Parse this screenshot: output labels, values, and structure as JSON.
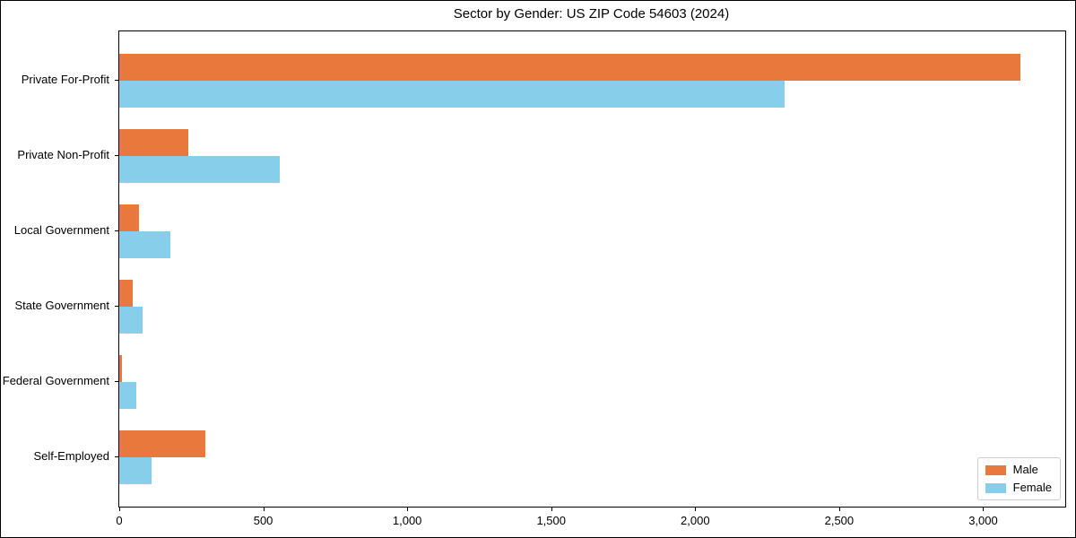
{
  "chart_data": {
    "type": "bar",
    "orientation": "horizontal",
    "title": "Sector by Gender: US ZIP Code 54603 (2024)",
    "categories": [
      "Private For-Profit",
      "Private Non-Profit",
      "Local Government",
      "State Government",
      "Federal Government",
      "Self-Employed"
    ],
    "series": [
      {
        "name": "Male",
        "color": "#E8783C",
        "values": [
          3130,
          240,
          70,
          47,
          10,
          298
        ]
      },
      {
        "name": "Female",
        "color": "#87CEEB",
        "values": [
          2310,
          558,
          176,
          80,
          59,
          113
        ]
      }
    ],
    "xlabel": "",
    "ylabel": "",
    "xlim": [
      0,
      3285
    ],
    "x_ticks": [
      0,
      500,
      1000,
      1500,
      2000,
      2500,
      3000
    ],
    "x_tick_labels": [
      "0",
      "500",
      "1,000",
      "1,500",
      "2,000",
      "2,500",
      "3,000"
    ],
    "grid": false,
    "legend_position": "lower right"
  },
  "legend": {
    "items": [
      {
        "label": "Male",
        "color": "#E8783C"
      },
      {
        "label": "Female",
        "color": "#87CEEB"
      }
    ]
  }
}
